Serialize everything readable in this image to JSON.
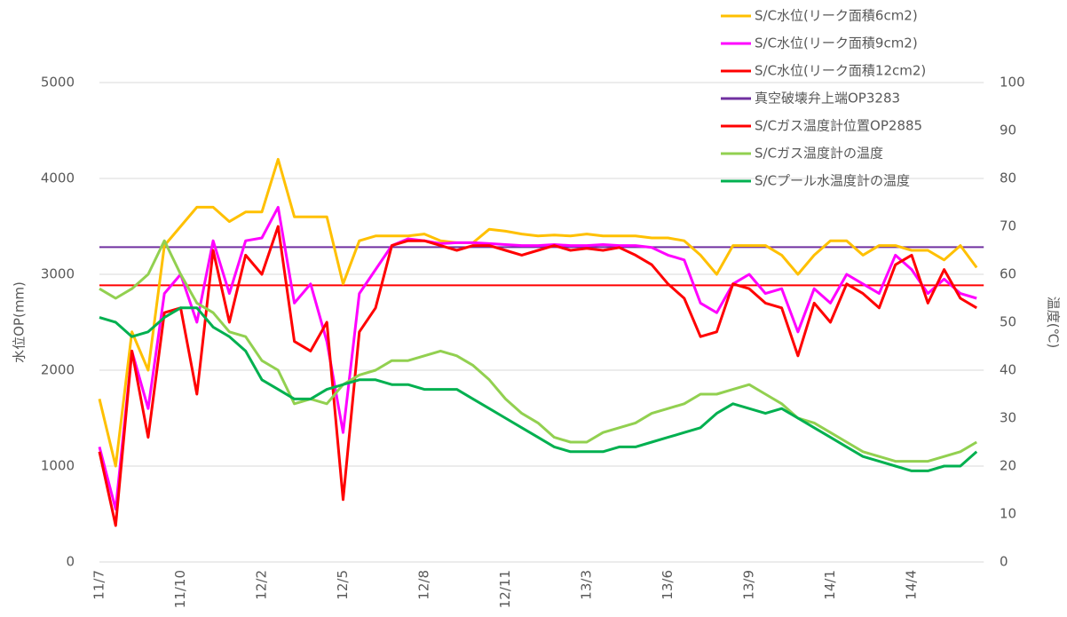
{
  "chart_data": {
    "type": "line",
    "y_label": "水位OP(mm)",
    "y2_label": "温度(℃)",
    "categories": [
      "11/7",
      null,
      null,
      null,
      null,
      "11/10",
      null,
      null,
      null,
      null,
      "12/2",
      null,
      null,
      null,
      null,
      "12/5",
      null,
      null,
      null,
      null,
      "12/8",
      null,
      null,
      null,
      null,
      "12/11",
      null,
      null,
      null,
      null,
      "13/3",
      null,
      null,
      null,
      null,
      "13/6",
      null,
      null,
      null,
      null,
      "13/9",
      null,
      null,
      null,
      null,
      "14/1",
      null,
      null,
      null,
      null,
      "14/4",
      null,
      null,
      null,
      null
    ],
    "ylim": [
      0,
      5000
    ],
    "yticks": [
      0,
      1000,
      2000,
      3000,
      4000,
      5000
    ],
    "y2lim": [
      0,
      100
    ],
    "y2ticks": [
      0,
      10,
      20,
      30,
      40,
      50,
      60,
      70,
      80,
      90,
      100
    ],
    "grid": true,
    "legend": "top-right",
    "series": [
      {
        "name": "S/C水位(リーク面積6cm2)",
        "color": "#FFC000",
        "values": [
          1700,
          1000,
          2400,
          2000,
          3300,
          3500,
          3700,
          3700,
          3550,
          3650,
          3650,
          4200,
          3600,
          3600,
          3600,
          2900,
          3350,
          3400,
          3400,
          3400,
          3420,
          3350,
          3330,
          3330,
          3470,
          3450,
          3420,
          3400,
          3410,
          3400,
          3420,
          3400,
          3400,
          3400,
          3380,
          3380,
          3350,
          3200,
          3000,
          3300,
          3300,
          3300,
          3200,
          3000,
          3200,
          3350,
          3350,
          3200,
          3300,
          3300,
          3250,
          3250,
          3150,
          3300,
          3070
        ]
      },
      {
        "name": "S/C水位(リーク面積9cm2)",
        "color": "#FF00FF",
        "values": [
          1200,
          550,
          2200,
          1600,
          2800,
          3000,
          2500,
          3350,
          2800,
          3350,
          3380,
          3700,
          2700,
          2900,
          2300,
          1350,
          2800,
          3050,
          3300,
          3370,
          3350,
          3320,
          3330,
          3330,
          3320,
          3310,
          3300,
          3300,
          3310,
          3300,
          3300,
          3310,
          3300,
          3300,
          3280,
          3200,
          3150,
          2700,
          2600,
          2900,
          3000,
          2800,
          2850,
          2400,
          2850,
          2700,
          3000,
          2900,
          2800,
          3200,
          3050,
          2800,
          2950,
          2800,
          2750
        ]
      },
      {
        "name": "S/C水位(リーク面積12cm2)",
        "color": "#FF0000",
        "values": [
          1150,
          380,
          2200,
          1300,
          2600,
          2650,
          1750,
          3250,
          2500,
          3200,
          3000,
          3500,
          2300,
          2200,
          2500,
          650,
          2400,
          2650,
          3300,
          3350,
          3350,
          3300,
          3250,
          3300,
          3300,
          3250,
          3200,
          3250,
          3300,
          3250,
          3270,
          3250,
          3280,
          3200,
          3100,
          2900,
          2750,
          2350,
          2400,
          2900,
          2850,
          2700,
          2650,
          2150,
          2700,
          2500,
          2900,
          2800,
          2650,
          3100,
          3200,
          2700,
          3050,
          2750,
          2650
        ]
      },
      {
        "name": "S/Cガス温度計の温度",
        "color": "#92D050",
        "axis": "y2",
        "values": [
          57,
          55,
          57,
          60,
          67,
          60,
          54,
          52,
          48,
          47,
          42,
          40,
          33,
          34,
          33,
          37,
          39,
          40,
          42,
          42,
          43,
          44,
          43,
          41,
          38,
          34,
          31,
          29,
          26,
          25,
          25,
          27,
          28,
          29,
          31,
          32,
          33,
          35,
          35,
          36,
          37,
          35,
          33,
          30,
          29,
          27,
          25,
          23,
          22,
          21,
          21,
          21,
          22,
          23,
          25
        ]
      },
      {
        "name": "S/Cプール水温度計の温度",
        "color": "#00B050",
        "axis": "y2",
        "values": [
          51,
          50,
          47,
          48,
          51,
          53,
          53,
          49,
          47,
          44,
          38,
          36,
          34,
          34,
          36,
          37,
          38,
          38,
          37,
          37,
          36,
          36,
          36,
          34,
          32,
          30,
          28,
          26,
          24,
          23,
          23,
          23,
          24,
          24,
          25,
          26,
          27,
          28,
          31,
          33,
          32,
          31,
          32,
          30,
          28,
          26,
          24,
          22,
          21,
          20,
          19,
          19,
          20,
          20,
          23
        ]
      }
    ],
    "hlines": [
      {
        "name": "真空破壊弁上端OP3283",
        "color": "#7030A0",
        "value": 3283
      },
      {
        "name": "S/Cガス温度計位置OP2885",
        "color": "#FF0000",
        "value": 2885
      }
    ]
  }
}
